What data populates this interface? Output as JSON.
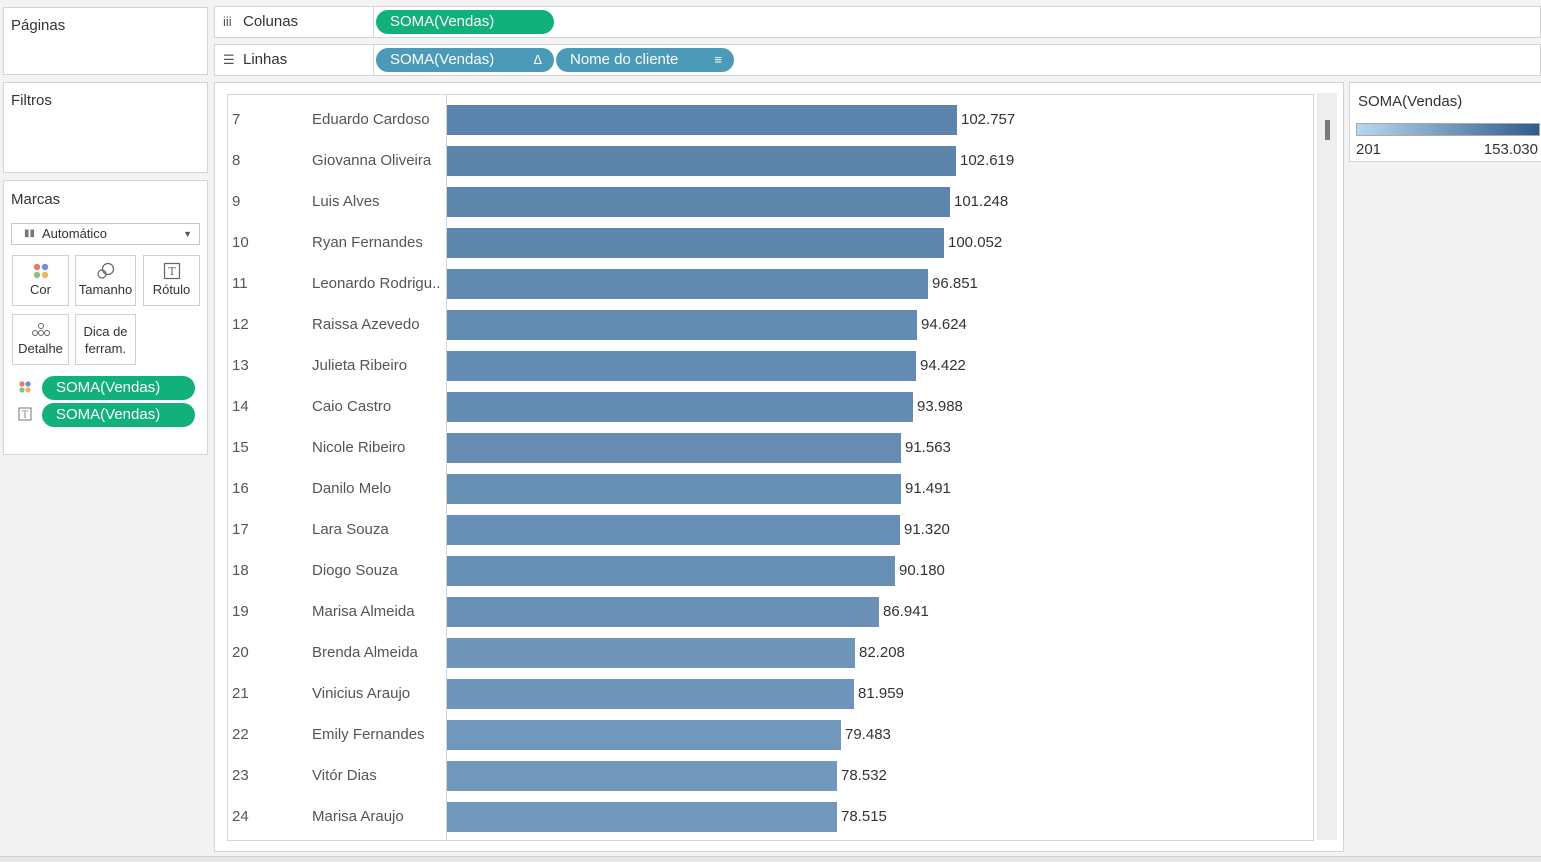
{
  "panels": {
    "pages_title": "Páginas",
    "filters_title": "Filtros",
    "marks_title": "Marcas"
  },
  "shelves": {
    "columns": {
      "label": "Colunas",
      "icon": "columns-icon",
      "pills": [
        "SOMA(Vendas)"
      ]
    },
    "rows": {
      "label": "Linhas",
      "icon": "rows-icon",
      "pills": [
        {
          "text": "SOMA(Vendas)",
          "suffix": "Δ"
        },
        {
          "text": "Nome do cliente",
          "suffix": "≡"
        }
      ]
    }
  },
  "marks": {
    "type_select": "Automático",
    "buttons": {
      "color": "Cor",
      "size": "Tamanho",
      "label": "Rótulo",
      "detail": "Detalhe",
      "tooltip": "Dica de\nferram."
    },
    "fields": [
      {
        "icon": "color-icon",
        "text": "SOMA(Vendas)"
      },
      {
        "icon": "label-icon",
        "text": "SOMA(Vendas)"
      }
    ]
  },
  "legend": {
    "title": "SOMA(Vendas)",
    "min_label": "201",
    "max_label": "153.030",
    "min_value": 201,
    "max_value": 153030,
    "color_low": "#b9d7ee",
    "color_high": "#2f5c8c"
  },
  "chart_data": {
    "type": "bar",
    "orientation": "horizontal",
    "measure": "SOMA(Vendas)",
    "dimension": "Nome do cliente",
    "rows": [
      {
        "index": "7",
        "name": "Eduardo Cardoso",
        "value": 102757,
        "label": "102.757"
      },
      {
        "index": "8",
        "name": "Giovanna Oliveira",
        "value": 102619,
        "label": "102.619"
      },
      {
        "index": "9",
        "name": "Luis Alves",
        "value": 101248,
        "label": "101.248"
      },
      {
        "index": "10",
        "name": "Ryan Fernandes",
        "value": 100052,
        "label": "100.052"
      },
      {
        "index": "11",
        "name": "Leonardo Rodrigu..",
        "value": 96851,
        "label": "96.851"
      },
      {
        "index": "12",
        "name": "Raissa Azevedo",
        "value": 94624,
        "label": "94.624"
      },
      {
        "index": "13",
        "name": "Julieta Ribeiro",
        "value": 94422,
        "label": "94.422"
      },
      {
        "index": "14",
        "name": "Caio Castro",
        "value": 93988,
        "label": "93.988"
      },
      {
        "index": "15",
        "name": "Nicole Ribeiro",
        "value": 91563,
        "label": "91.563"
      },
      {
        "index": "16",
        "name": "Danilo Melo",
        "value": 91491,
        "label": "91.491"
      },
      {
        "index": "17",
        "name": "Lara Souza",
        "value": 91320,
        "label": "91.320"
      },
      {
        "index": "18",
        "name": "Diogo Souza",
        "value": 90180,
        "label": "90.180"
      },
      {
        "index": "19",
        "name": "Marisa Almeida",
        "value": 86941,
        "label": "86.941"
      },
      {
        "index": "20",
        "name": "Brenda Almeida",
        "value": 82208,
        "label": "82.208"
      },
      {
        "index": "21",
        "name": "Vinicius Araujo",
        "value": 81959,
        "label": "81.959"
      },
      {
        "index": "22",
        "name": "Emily Fernandes",
        "value": 79483,
        "label": "79.483"
      },
      {
        "index": "23",
        "name": "Vitór Dias",
        "value": 78532,
        "label": "78.532"
      },
      {
        "index": "24",
        "name": "Marisa Araujo",
        "value": 78515,
        "label": "78.515"
      }
    ]
  }
}
